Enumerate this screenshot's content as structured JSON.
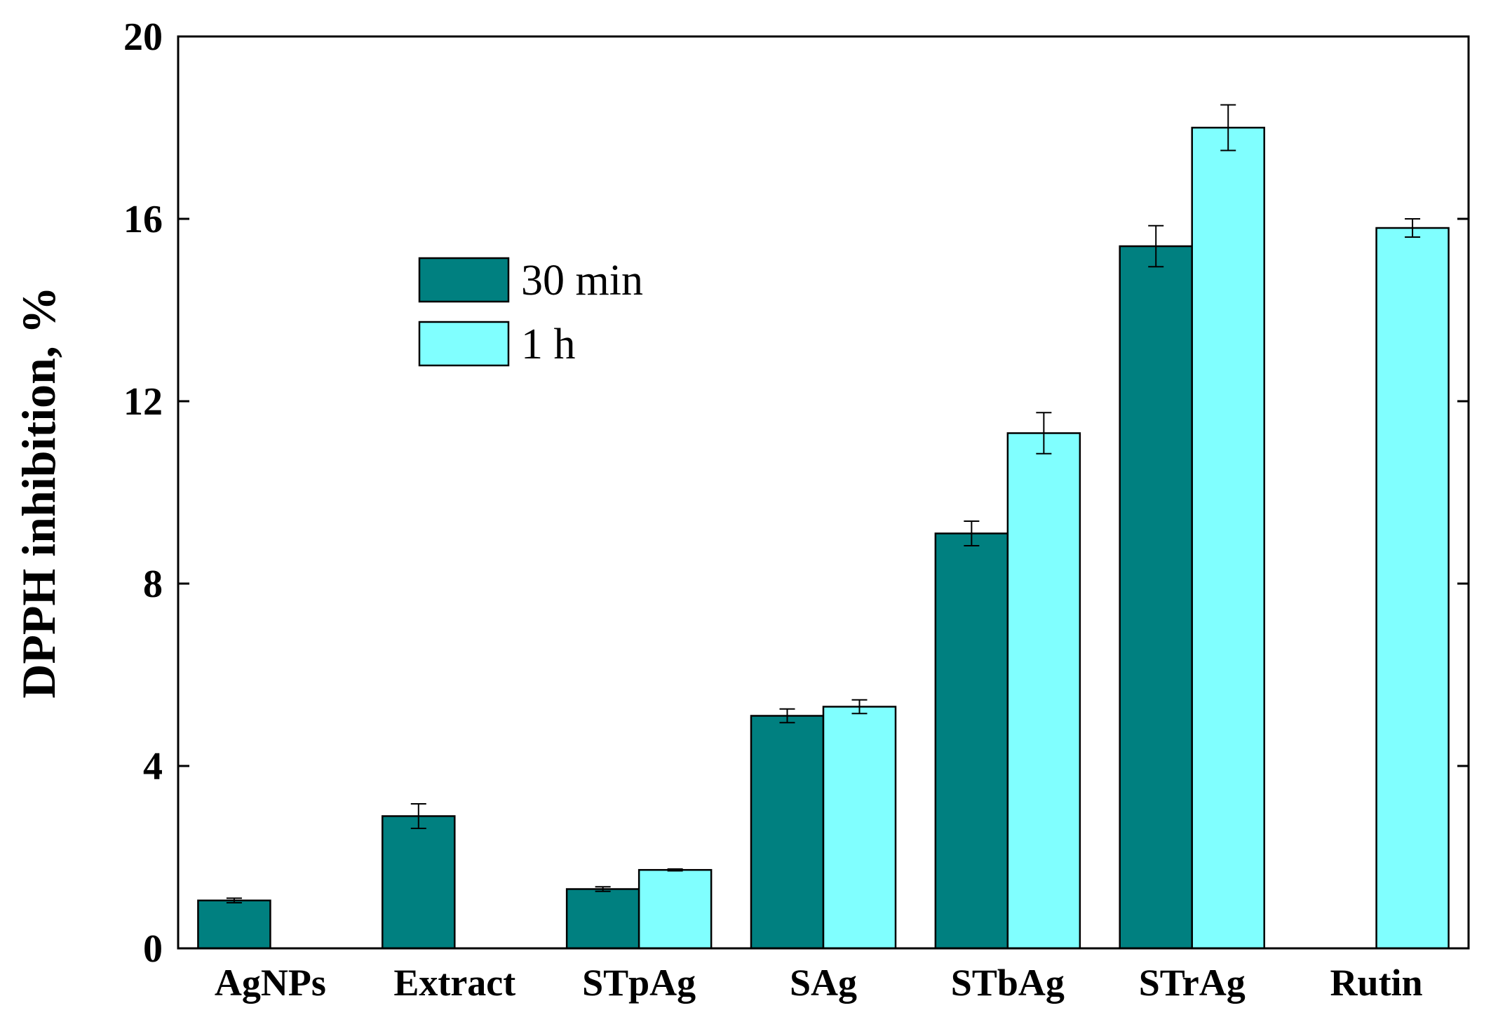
{
  "chart_data": {
    "type": "bar",
    "title": "",
    "xlabel": "",
    "ylabel": "DPPH inhibition, %",
    "ylim": [
      0,
      20
    ],
    "yticks": [
      0,
      4,
      8,
      12,
      16,
      20
    ],
    "grid": false,
    "legend_position": "upper-left",
    "categories": [
      "AgNPs",
      "Extract",
      "STpAg",
      "SAg",
      "STbAg",
      "STrAg",
      "Rutin"
    ],
    "series": [
      {
        "name": "30 min",
        "color": "#008080",
        "values": [
          1.05,
          2.9,
          1.3,
          5.1,
          9.1,
          15.4,
          null
        ],
        "errors": [
          0.05,
          0.27,
          0.05,
          0.15,
          0.27,
          0.45,
          null
        ]
      },
      {
        "name": "1 h",
        "color": "#80FFFF",
        "values": [
          null,
          null,
          1.72,
          5.3,
          11.3,
          18.0,
          15.8
        ],
        "errors": [
          null,
          null,
          0.02,
          0.15,
          0.45,
          0.5,
          0.2
        ]
      }
    ]
  }
}
